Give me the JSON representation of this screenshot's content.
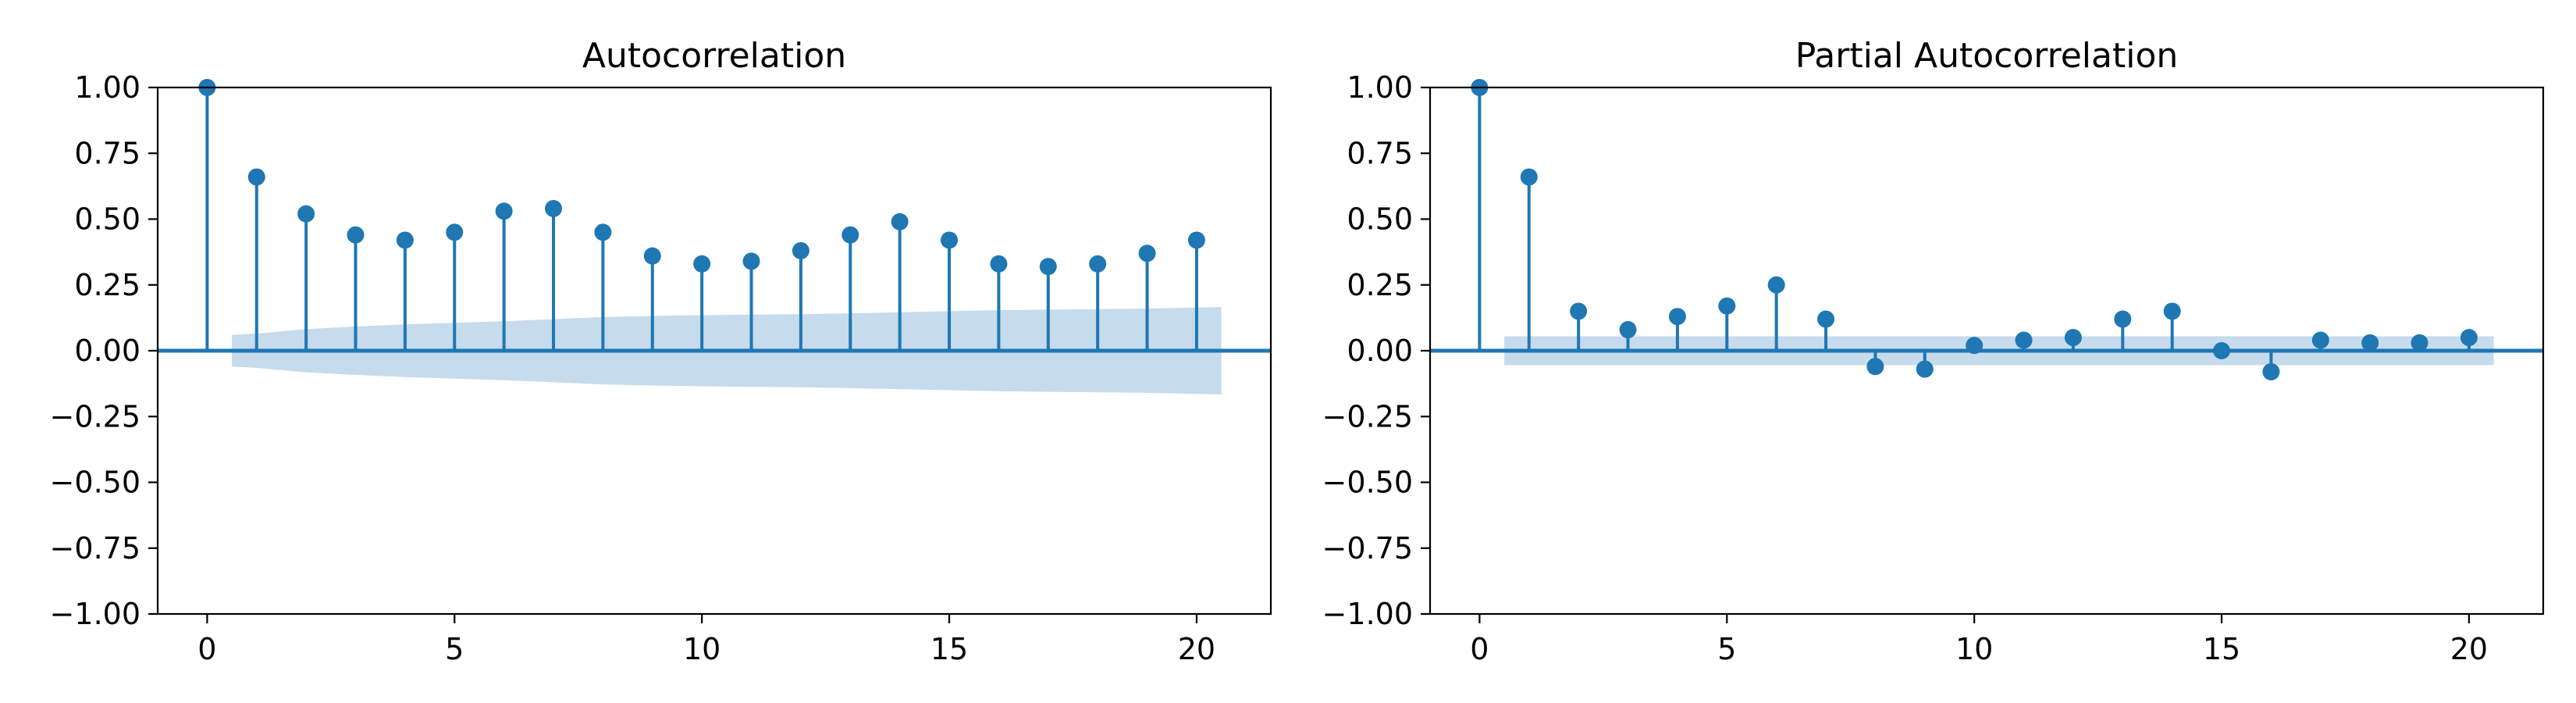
{
  "chart_data": [
    {
      "type": "stem",
      "title": "Autocorrelation",
      "xlabel": "",
      "ylabel": "",
      "ylim": [
        -1.0,
        1.0
      ],
      "xlim": [
        -1,
        21.5
      ],
      "xticks": [
        0,
        5,
        10,
        15,
        20
      ],
      "xtick_labels": [
        "0",
        "5",
        "10",
        "15",
        "20"
      ],
      "yticks": [
        -1.0,
        -0.75,
        -0.5,
        -0.25,
        0.0,
        0.25,
        0.5,
        0.75,
        1.0
      ],
      "ytick_labels": [
        "−1.00",
        "−0.75",
        "−0.50",
        "−0.25",
        "0.00",
        "0.25",
        "0.50",
        "0.75",
        "1.00"
      ],
      "grid": false,
      "color": "#1f77b4",
      "band_color": "#c6dbec",
      "lags": [
        0,
        1,
        2,
        3,
        4,
        5,
        6,
        7,
        8,
        9,
        10,
        11,
        12,
        13,
        14,
        15,
        16,
        17,
        18,
        19,
        20
      ],
      "values": [
        1.0,
        0.66,
        0.52,
        0.44,
        0.42,
        0.45,
        0.53,
        0.54,
        0.45,
        0.36,
        0.33,
        0.34,
        0.38,
        0.44,
        0.49,
        0.42,
        0.33,
        0.32,
        0.33,
        0.37,
        0.42
      ],
      "confidence_band": {
        "x": [
          0.5,
          1,
          2,
          3,
          4,
          5,
          6,
          7,
          8,
          9,
          10,
          11,
          12,
          13,
          14,
          15,
          16,
          17,
          18,
          19,
          20,
          20.5
        ],
        "upper": [
          0.06,
          0.065,
          0.082,
          0.092,
          0.1,
          0.106,
          0.112,
          0.12,
          0.128,
          0.132,
          0.135,
          0.137,
          0.139,
          0.142,
          0.146,
          0.15,
          0.154,
          0.156,
          0.158,
          0.16,
          0.164,
          0.166
        ],
        "lower": [
          -0.06,
          -0.065,
          -0.082,
          -0.092,
          -0.1,
          -0.106,
          -0.112,
          -0.12,
          -0.128,
          -0.132,
          -0.135,
          -0.137,
          -0.139,
          -0.142,
          -0.146,
          -0.15,
          -0.154,
          -0.156,
          -0.158,
          -0.16,
          -0.164,
          -0.166
        ]
      }
    },
    {
      "type": "stem",
      "title": "Partial Autocorrelation",
      "xlabel": "",
      "ylabel": "",
      "ylim": [
        -1.0,
        1.0
      ],
      "xlim": [
        -1,
        21.5
      ],
      "xticks": [
        0,
        5,
        10,
        15,
        20
      ],
      "xtick_labels": [
        "0",
        "5",
        "10",
        "15",
        "20"
      ],
      "yticks": [
        -1.0,
        -0.75,
        -0.5,
        -0.25,
        0.0,
        0.25,
        0.5,
        0.75,
        1.0
      ],
      "ytick_labels": [
        "−1.00",
        "−0.75",
        "−0.50",
        "−0.25",
        "0.00",
        "0.25",
        "0.50",
        "0.75",
        "1.00"
      ],
      "grid": false,
      "color": "#1f77b4",
      "band_color": "#c6dbec",
      "lags": [
        0,
        1,
        2,
        3,
        4,
        5,
        6,
        7,
        8,
        9,
        10,
        11,
        12,
        13,
        14,
        15,
        16,
        17,
        18,
        19,
        20
      ],
      "values": [
        1.0,
        0.66,
        0.15,
        0.08,
        0.13,
        0.17,
        0.25,
        0.12,
        -0.06,
        -0.07,
        0.02,
        0.04,
        0.05,
        0.12,
        0.15,
        0.0,
        -0.08,
        0.04,
        0.03,
        0.03,
        0.05
      ],
      "confidence_band": {
        "x": [
          0.5,
          20.5
        ],
        "upper": [
          0.055,
          0.055
        ],
        "lower": [
          -0.055,
          -0.055
        ]
      }
    }
  ]
}
